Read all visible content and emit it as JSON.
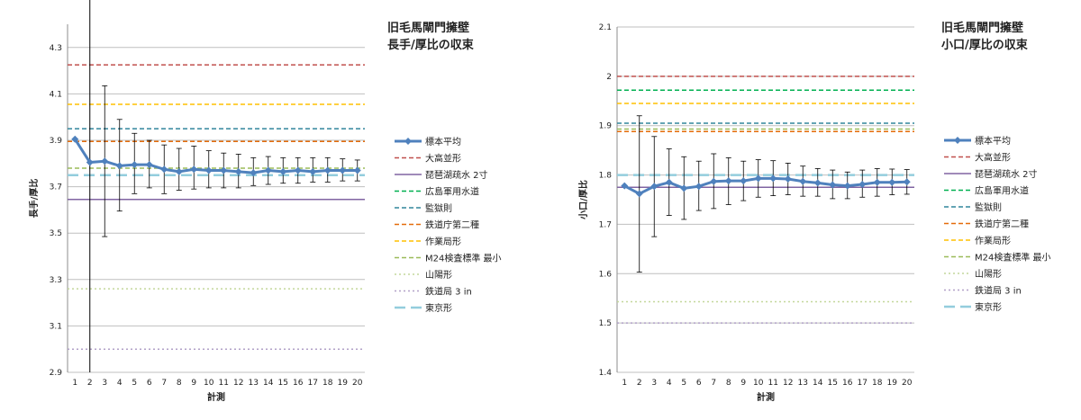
{
  "chart_data": [
    {
      "type": "line",
      "title": [
        "旧毛馬閘門擁壁",
        "長手/厚比の収束"
      ],
      "xlabel": "計測",
      "ylabel": "長手/厚比",
      "categories": [
        1,
        2,
        3,
        4,
        5,
        6,
        7,
        8,
        9,
        10,
        11,
        12,
        13,
        14,
        15,
        16,
        17,
        18,
        19,
        20
      ],
      "ylim": [
        2.9,
        4.4
      ],
      "yticks": [
        2.9,
        3.1,
        3.3,
        3.5,
        3.7,
        3.9,
        4.1,
        4.3
      ],
      "ytick_labels": [
        "2.9",
        "3.1",
        "3.3",
        "3.5",
        "3.7",
        "3.9",
        "4.1",
        "4.3"
      ],
      "grid": true,
      "legend_position": "right",
      "vertical_marker_x": 2,
      "series": [
        {
          "name": "標本平均",
          "color": "#4f81bd",
          "marker": "diamond",
          "values": [
            3.905,
            3.805,
            3.81,
            3.79,
            3.795,
            3.795,
            3.775,
            3.765,
            3.775,
            3.77,
            3.77,
            3.765,
            3.76,
            3.77,
            3.765,
            3.77,
            3.765,
            3.77,
            3.77,
            3.77
          ],
          "error_low": [
            3.905,
            3.805,
            3.485,
            3.595,
            3.67,
            3.695,
            3.67,
            3.685,
            3.69,
            3.695,
            3.695,
            3.695,
            3.705,
            3.71,
            3.715,
            3.715,
            3.72,
            3.72,
            3.725,
            3.725
          ],
          "error_high": [
            3.905,
            3.805,
            4.135,
            3.99,
            3.93,
            3.9,
            3.88,
            3.865,
            3.875,
            3.855,
            3.845,
            3.84,
            3.825,
            3.83,
            3.825,
            3.825,
            3.825,
            3.825,
            3.82,
            3.815
          ]
        }
      ],
      "reference_lines": [
        {
          "name": "大高並形",
          "value": 4.225,
          "color": "#c0504d",
          "dash": "dash"
        },
        {
          "name": "琵琶湖疏水 2寸",
          "value": 3.645,
          "color": "#8064a2",
          "dash": "solid"
        },
        {
          "name": "広島軍用水道",
          "value": null,
          "color": "#00b050",
          "dash": "dash"
        },
        {
          "name": "監獄則",
          "value": 3.95,
          "color": "#31859c",
          "dash": "dash"
        },
        {
          "name": "鉄道庁第二種",
          "value": 3.895,
          "color": "#e46c0a",
          "dash": "dash"
        },
        {
          "name": "作業局形",
          "value": 4.055,
          "color": "#ffc000",
          "dash": "dash"
        },
        {
          "name": "M24検査標準 最小",
          "value": 3.78,
          "color": "#9bbb59",
          "dash": "dash"
        },
        {
          "name": "山陽形",
          "value": 3.26,
          "color": "#c4d79b",
          "dash": "dot"
        },
        {
          "name": "鉄道局 3 in",
          "value": 3.0,
          "color": "#b1a0c7",
          "dash": "dot"
        },
        {
          "name": "東京形",
          "value": 3.75,
          "color": "#93cddd",
          "dash": "longdash"
        }
      ]
    },
    {
      "type": "line",
      "title": [
        "旧毛馬閘門擁壁",
        "小口/厚比の収束"
      ],
      "xlabel": "計測",
      "ylabel": "小口/厚比",
      "categories": [
        1,
        2,
        3,
        4,
        5,
        6,
        7,
        8,
        9,
        10,
        11,
        12,
        13,
        14,
        15,
        16,
        17,
        18,
        19,
        20
      ],
      "ylim": [
        1.4,
        2.1
      ],
      "yticks": [
        1.4,
        1.5,
        1.6,
        1.7,
        1.8,
        1.9,
        2.0,
        2.1
      ],
      "ytick_labels": [
        "1.4",
        "1.5",
        "1.6",
        "1.7",
        "1.8",
        "1.9",
        "2",
        "2.1"
      ],
      "grid": true,
      "legend_position": "right",
      "series": [
        {
          "name": "標本平均",
          "color": "#4f81bd",
          "marker": "diamond",
          "values": [
            1.778,
            1.762,
            1.777,
            1.785,
            1.773,
            1.777,
            1.787,
            1.788,
            1.788,
            1.793,
            1.793,
            1.792,
            1.787,
            1.784,
            1.78,
            1.778,
            1.781,
            1.785,
            1.785,
            1.786
          ],
          "error_low": [
            1.778,
            1.603,
            1.675,
            1.718,
            1.71,
            1.728,
            1.732,
            1.74,
            1.748,
            1.755,
            1.758,
            1.76,
            1.757,
            1.757,
            1.752,
            1.752,
            1.755,
            1.757,
            1.76,
            1.761
          ],
          "error_high": [
            1.778,
            1.92,
            1.878,
            1.853,
            1.837,
            1.828,
            1.843,
            1.835,
            1.828,
            1.831,
            1.829,
            1.824,
            1.818,
            1.813,
            1.81,
            1.806,
            1.81,
            1.813,
            1.812,
            1.811
          ]
        }
      ],
      "reference_lines": [
        {
          "name": "大高並形",
          "value": 2.0,
          "color": "#c0504d",
          "dash": "dash"
        },
        {
          "name": "琵琶湖疏水 2寸",
          "value": 1.775,
          "color": "#8064a2",
          "dash": "solid"
        },
        {
          "name": "広島軍用水道",
          "value": 1.972,
          "color": "#00b050",
          "dash": "dash"
        },
        {
          "name": "監獄則",
          "value": 1.905,
          "color": "#31859c",
          "dash": "dash"
        },
        {
          "name": "鉄道庁第二種",
          "value": 1.888,
          "color": "#e46c0a",
          "dash": "dash"
        },
        {
          "name": "作業局形",
          "value": 1.945,
          "color": "#ffc000",
          "dash": "dash"
        },
        {
          "name": "M24検査標準 最小",
          "value": 1.893,
          "color": "#9bbb59",
          "dash": "dash"
        },
        {
          "name": "山陽形",
          "value": 1.543,
          "color": "#c4d79b",
          "dash": "dot"
        },
        {
          "name": "鉄道局 3 in",
          "value": 1.5,
          "color": "#b1a0c7",
          "dash": "dot"
        },
        {
          "name": "東京形",
          "value": 1.8,
          "color": "#93cddd",
          "dash": "longdash"
        }
      ]
    }
  ]
}
